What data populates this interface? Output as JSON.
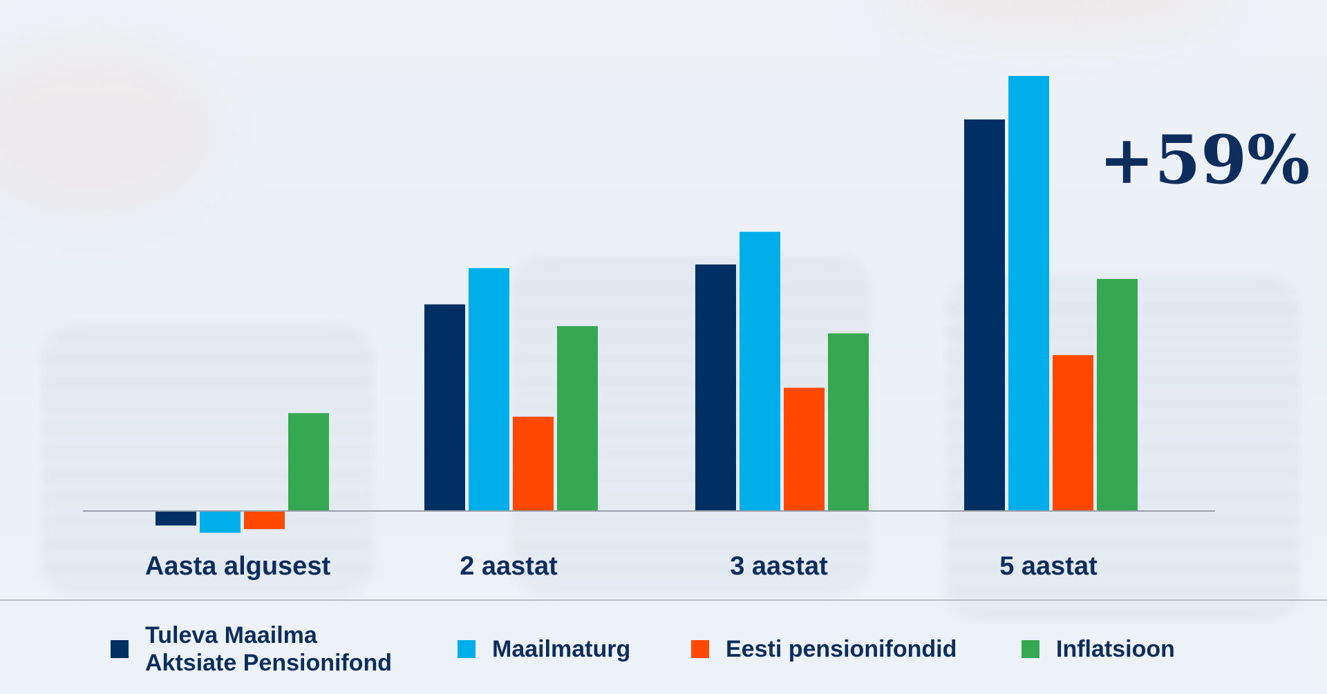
{
  "chart_data": {
    "type": "bar",
    "categories": [
      "Aasta algusest",
      "2 aastat",
      "3 aastat",
      "5 aastat"
    ],
    "series": [
      {
        "name": "Tuleva Maailma Aktsiate Pensionifond",
        "color": "#003063",
        "values": [
          -2,
          28.5,
          34,
          54
        ]
      },
      {
        "name": "Maailmaturg",
        "color": "#00aee9",
        "values": [
          -3,
          33.5,
          38.5,
          60
        ]
      },
      {
        "name": "Eesti pensionifondid",
        "color": "#ff4800",
        "values": [
          -2.5,
          13,
          17,
          21.5
        ]
      },
      {
        "name": "Inflatsioon",
        "color": "#36a852",
        "values": [
          13.5,
          25.5,
          24.5,
          32
        ]
      }
    ],
    "annotation": "+59%",
    "ylim": [
      -4,
      64
    ],
    "grid": false,
    "legend_position": "bottom"
  },
  "legend": {
    "items": [
      {
        "label": "Tuleva Maailma\nAktsiate Pensionifond",
        "color": "#003063"
      },
      {
        "label": "Maailmaturg",
        "color": "#00aee9"
      },
      {
        "label": "Eesti pensionifondid",
        "color": "#ff4800"
      },
      {
        "label": "Inflatsioon",
        "color": "#36a852"
      }
    ]
  }
}
